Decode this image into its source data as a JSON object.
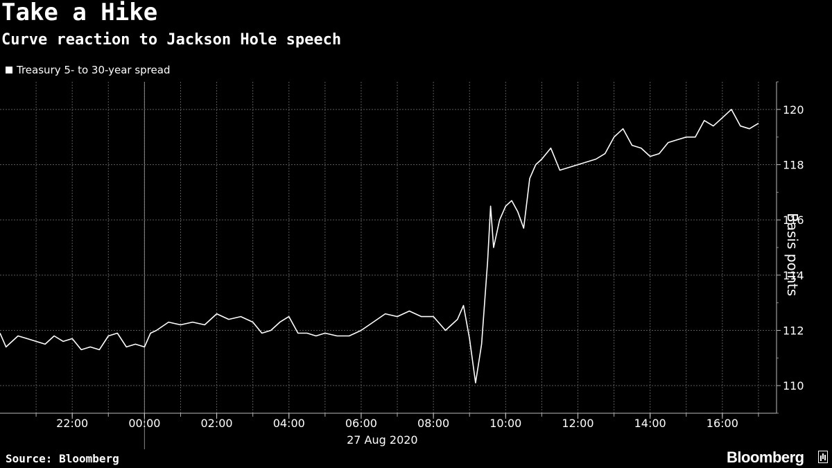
{
  "header": {
    "title": "Take a Hike",
    "subtitle": "Curve reaction to Jackson Hole speech"
  },
  "footer": {
    "source": "Source: Bloomberg",
    "brand": "Bloomberg"
  },
  "colors": {
    "background": "#000000",
    "line": "#ffffff",
    "grid": "#666666",
    "text": "#ffffff"
  },
  "chart_data": {
    "type": "line",
    "title": "Take a Hike",
    "subtitle": "Curve reaction to Jackson Hole speech",
    "ylabel": "Basis points",
    "xlabel": "27 Aug 2020",
    "x_axis_note": "27 Aug 2020",
    "legend": {
      "placement": "top-left",
      "entries": [
        "Treasury 5- to 30-year spread"
      ]
    },
    "ylim": [
      109,
      121
    ],
    "yticks": [
      110,
      112,
      114,
      116,
      118,
      120
    ],
    "ytick_labels": [
      "110",
      "112",
      "114",
      "116",
      "118",
      "120"
    ],
    "xlim": [
      "20:00",
      "17:30"
    ],
    "xticks": [
      "22:00",
      "00:00",
      "02:00",
      "04:00",
      "06:00",
      "08:00",
      "10:00",
      "12:00",
      "14:00",
      "16:00"
    ],
    "grid": true,
    "series": [
      {
        "name": "Treasury 5- to 30-year spread",
        "x": [
          "20:00",
          "20:10",
          "20:30",
          "20:45",
          "21:00",
          "21:15",
          "21:30",
          "21:45",
          "22:00",
          "22:15",
          "22:30",
          "22:45",
          "23:00",
          "23:15",
          "23:30",
          "23:45",
          "00:00",
          "00:10",
          "00:20",
          "00:40",
          "01:00",
          "01:20",
          "01:40",
          "02:00",
          "02:10",
          "02:20",
          "02:40",
          "03:00",
          "03:15",
          "03:30",
          "03:45",
          "04:00",
          "04:15",
          "04:30",
          "04:45",
          "05:00",
          "05:20",
          "05:40",
          "06:00",
          "06:20",
          "06:40",
          "07:00",
          "07:20",
          "07:40",
          "08:00",
          "08:20",
          "08:40",
          "08:50",
          "09:00",
          "09:10",
          "09:20",
          "09:30",
          "09:35",
          "09:40",
          "09:50",
          "10:00",
          "10:10",
          "10:20",
          "10:30",
          "10:40",
          "10:50",
          "11:00",
          "11:15",
          "11:30",
          "11:45",
          "12:00",
          "12:15",
          "12:30",
          "12:45",
          "13:00",
          "13:15",
          "13:30",
          "13:45",
          "14:00",
          "14:15",
          "14:30",
          "14:45",
          "15:00",
          "15:15",
          "15:30",
          "15:45",
          "16:00",
          "16:15",
          "16:30",
          "16:45",
          "17:00"
        ],
        "values": [
          111.9,
          111.4,
          111.8,
          111.7,
          111.6,
          111.5,
          111.8,
          111.6,
          111.7,
          111.3,
          111.4,
          111.3,
          111.8,
          111.9,
          111.4,
          111.5,
          111.4,
          111.9,
          112.0,
          112.3,
          112.2,
          112.3,
          112.2,
          112.6,
          112.5,
          112.4,
          112.5,
          112.3,
          111.9,
          112.0,
          112.3,
          112.5,
          111.9,
          111.9,
          111.8,
          111.9,
          111.8,
          111.8,
          112.0,
          112.3,
          112.6,
          112.5,
          112.7,
          112.5,
          112.5,
          112.0,
          112.4,
          112.9,
          111.7,
          110.1,
          111.5,
          114.5,
          116.5,
          115.0,
          116.0,
          116.5,
          116.7,
          116.3,
          115.7,
          117.5,
          118.0,
          118.2,
          118.6,
          117.8,
          117.9,
          118.0,
          118.1,
          118.2,
          118.4,
          119.0,
          119.3,
          118.7,
          118.6,
          118.3,
          118.4,
          118.8,
          118.9,
          119.0,
          119.0,
          119.6,
          119.4,
          119.7,
          120.0,
          119.4,
          119.3,
          119.5
        ]
      }
    ]
  }
}
